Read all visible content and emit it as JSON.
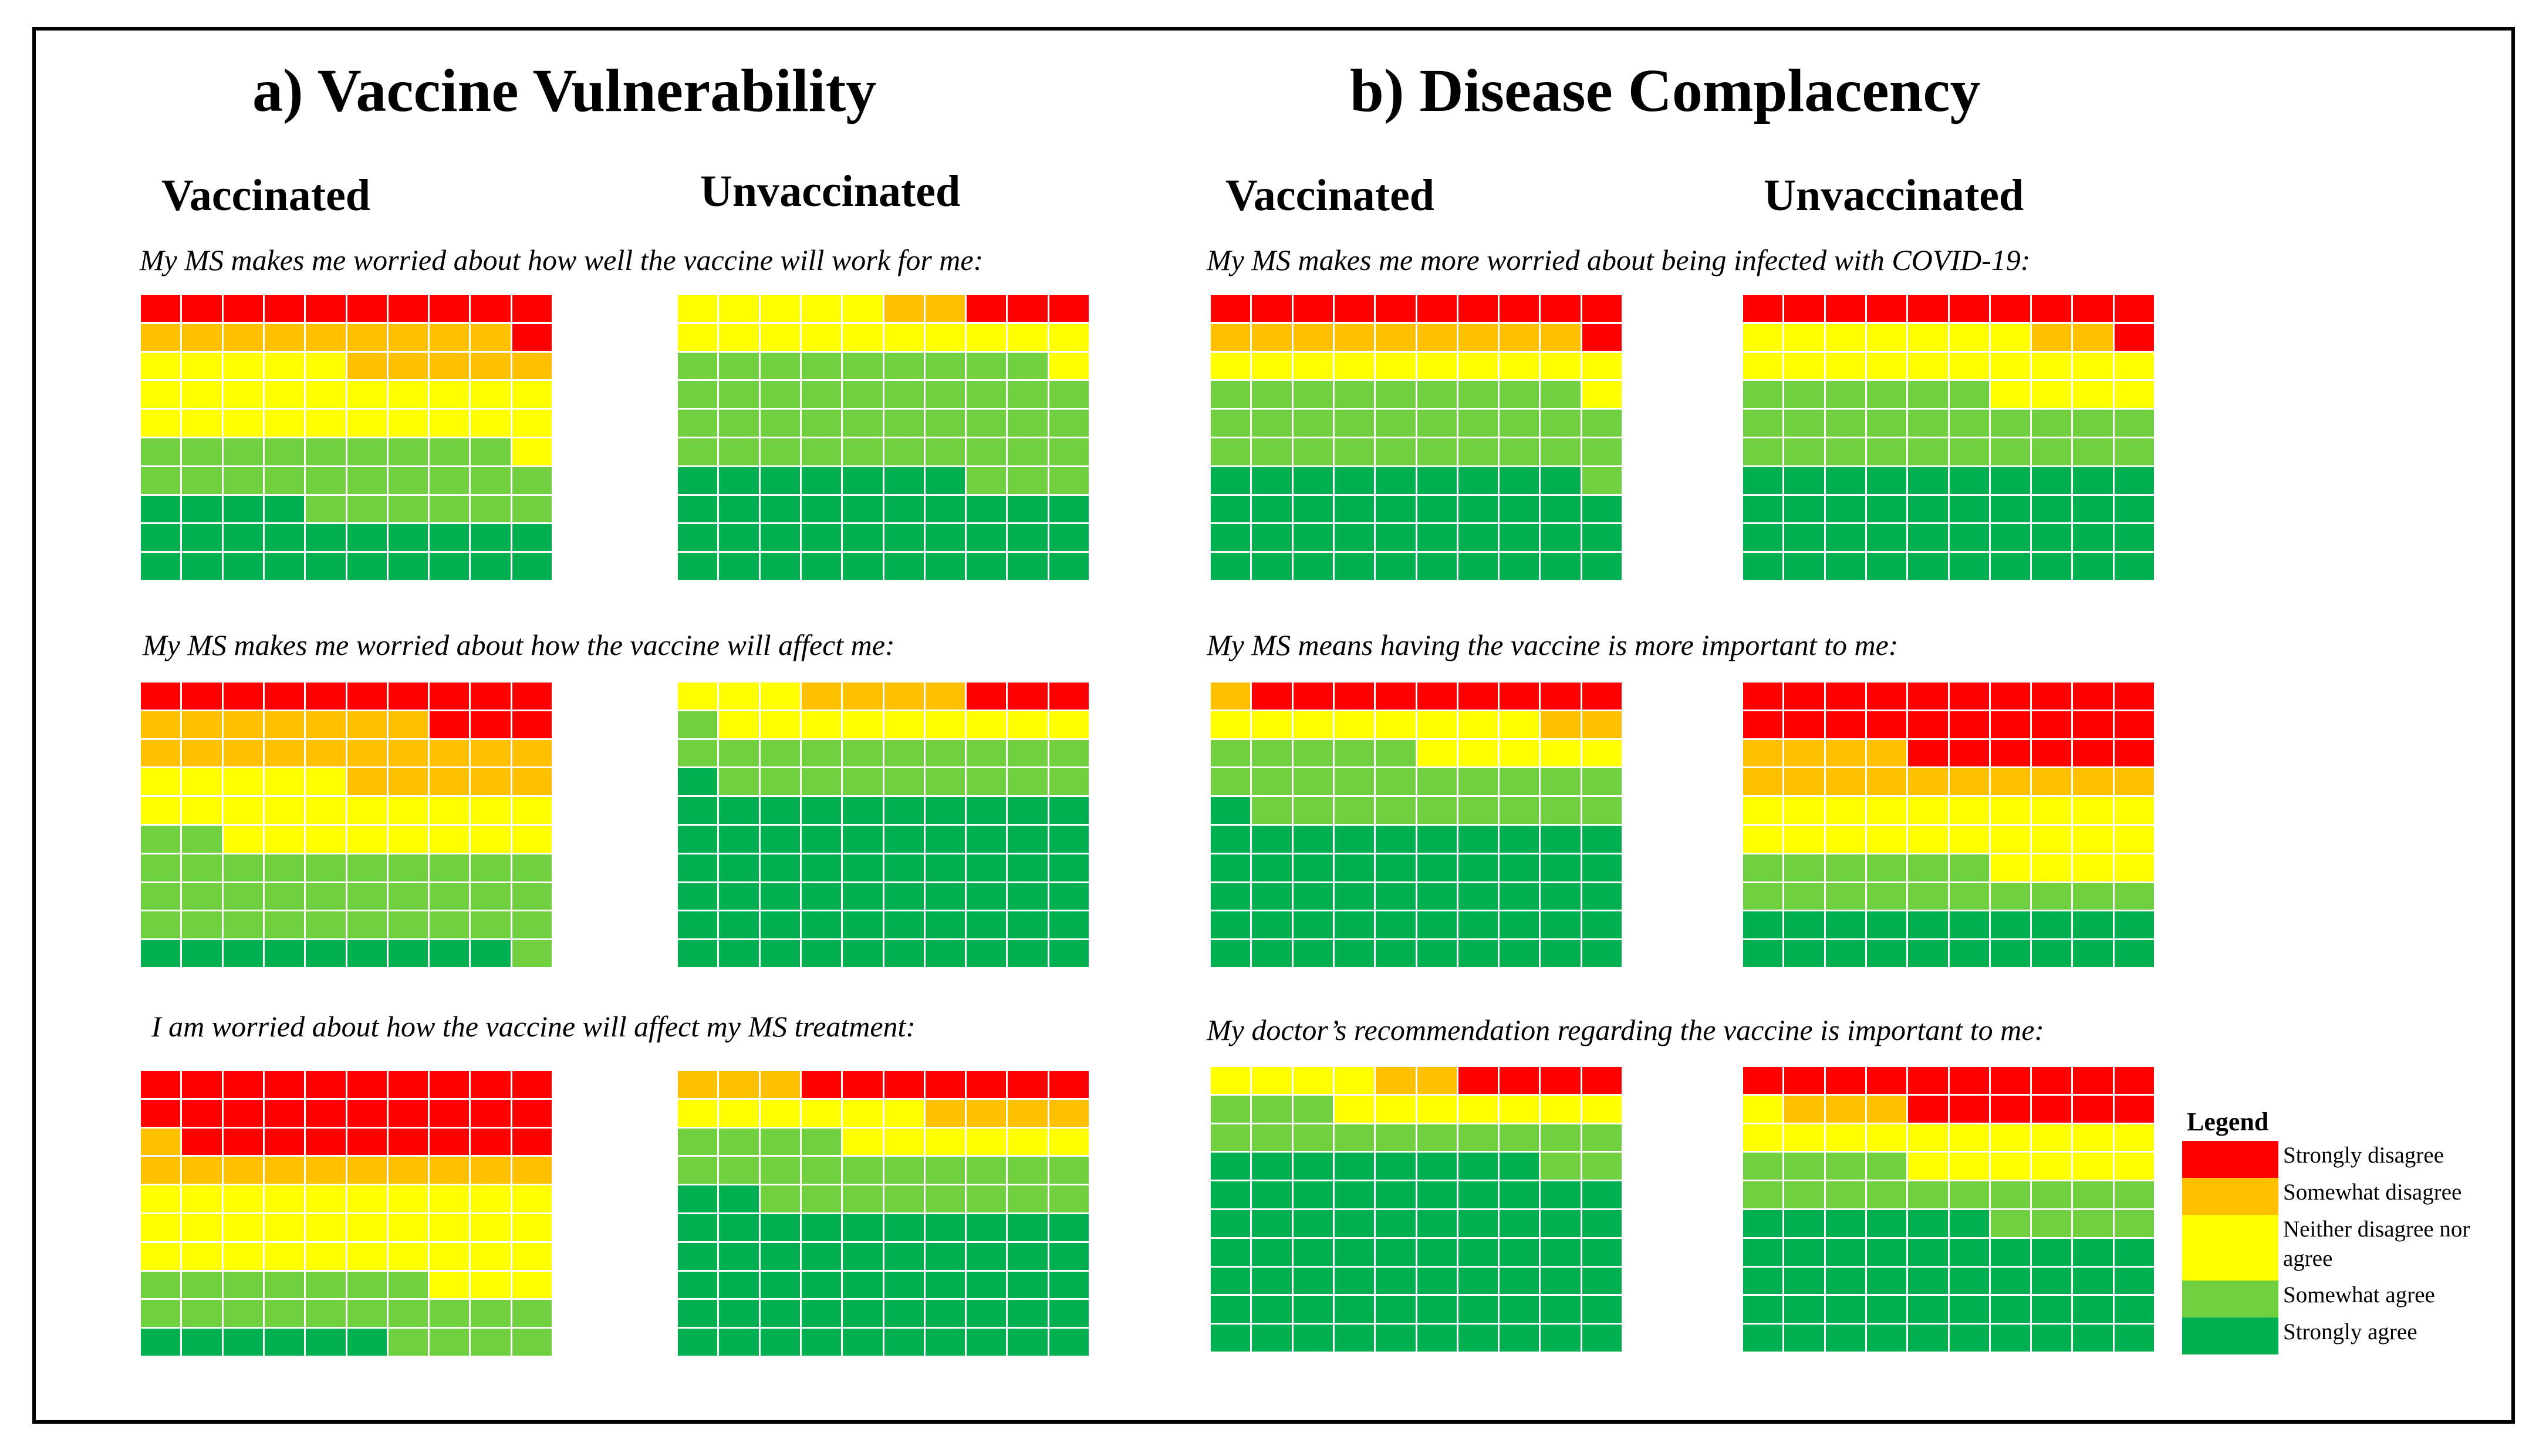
{
  "sections": [
    {
      "title": "a) Vaccine Vulnerability",
      "groups": [
        "Vaccinated",
        "Unvaccinated"
      ],
      "questions": [
        "My MS makes me worried about how well the vaccine will work for me:",
        "My MS makes me worried about how the vaccine will affect me:",
        "I am worried about how the vaccine will affect my MS treatment:"
      ]
    },
    {
      "title": "b) Disease Complacency",
      "groups": [
        "Vaccinated",
        "Unvaccinated"
      ],
      "questions": [
        "My MS makes me more worried about being infected with COVID-19:",
        "My MS means having the vaccine is more important to me:",
        "My doctor’s recommendation regarding the vaccine is important to me:"
      ]
    }
  ],
  "legend": {
    "title": "Legend",
    "items": [
      {
        "label": "Strongly disagree",
        "color": "#ff0000"
      },
      {
        "label": "Somewhat disagree",
        "color": "#ffc000"
      },
      {
        "label": "Neither disagree nor agree",
        "color": "#ffff00"
      },
      {
        "label": "Somewhat agree",
        "color": "#70d040"
      },
      {
        "label": "Strongly agree",
        "color": "#00b050"
      }
    ]
  },
  "chart_data": {
    "type": "waffle",
    "unit": "percent of respondents (10x10 grid, 1 cell = 1%)",
    "categories": [
      "Strongly disagree",
      "Somewhat disagree",
      "Neither disagree nor agree",
      "Somewhat agree",
      "Strongly agree"
    ],
    "charts": [
      {
        "section": "a) Vaccine Vulnerability",
        "question": "My MS makes me worried about how well the vaccine will work for me:",
        "group": "Vaccinated",
        "values": [
          11,
          14,
          26,
          25,
          24
        ]
      },
      {
        "section": "a) Vaccine Vulnerability",
        "question": "My MS makes me worried about how well the vaccine will work for me:",
        "group": "Unvaccinated",
        "values": [
          3,
          2,
          16,
          42,
          37
        ]
      },
      {
        "section": "a) Vaccine Vulnerability",
        "question": "My MS makes me worried about how the vaccine will affect me:",
        "group": "Vaccinated",
        "values": [
          13,
          22,
          23,
          33,
          9
        ]
      },
      {
        "section": "a) Vaccine Vulnerability",
        "question": "My MS makes me worried about how the vaccine will affect me:",
        "group": "Unvaccinated",
        "values": [
          3,
          4,
          12,
          20,
          61
        ]
      },
      {
        "section": "a) Vaccine Vulnerability",
        "question": "I am worried about how the vaccine will affect my MS treatment:",
        "group": "Vaccinated",
        "values": [
          29,
          11,
          33,
          21,
          6
        ]
      },
      {
        "section": "a) Vaccine Vulnerability",
        "question": "I am worried about how the vaccine will affect my MS treatment:",
        "group": "Unvaccinated",
        "values": [
          7,
          7,
          12,
          22,
          52
        ]
      },
      {
        "section": "b) Disease Complacency",
        "question": "My MS makes me more worried about being infected with COVID-19:",
        "group": "Vaccinated",
        "values": [
          11,
          9,
          11,
          30,
          39
        ]
      },
      {
        "section": "b) Disease Complacency",
        "question": "My MS makes me more worried about being infected with COVID-19:",
        "group": "Unvaccinated",
        "values": [
          11,
          2,
          21,
          26,
          40
        ]
      },
      {
        "section": "b) Disease Complacency",
        "question": "My MS means having the vaccine is more important to me:",
        "group": "Vaccinated",
        "values": [
          9,
          3,
          13,
          24,
          51
        ]
      },
      {
        "section": "b) Disease Complacency",
        "question": "My MS means having the vaccine is more important to me:",
        "group": "Unvaccinated",
        "values": [
          26,
          14,
          24,
          16,
          20
        ]
      },
      {
        "section": "b) Disease Complacency",
        "question": "My doctor’s recommendation regarding the vaccine is important to me:",
        "group": "Vaccinated",
        "values": [
          4,
          2,
          11,
          15,
          68
        ]
      },
      {
        "section": "b) Disease Complacency",
        "question": "My doctor’s recommendation regarding the vaccine is important to me:",
        "group": "Unvaccinated",
        "values": [
          16,
          3,
          17,
          18,
          46
        ]
      }
    ]
  }
}
